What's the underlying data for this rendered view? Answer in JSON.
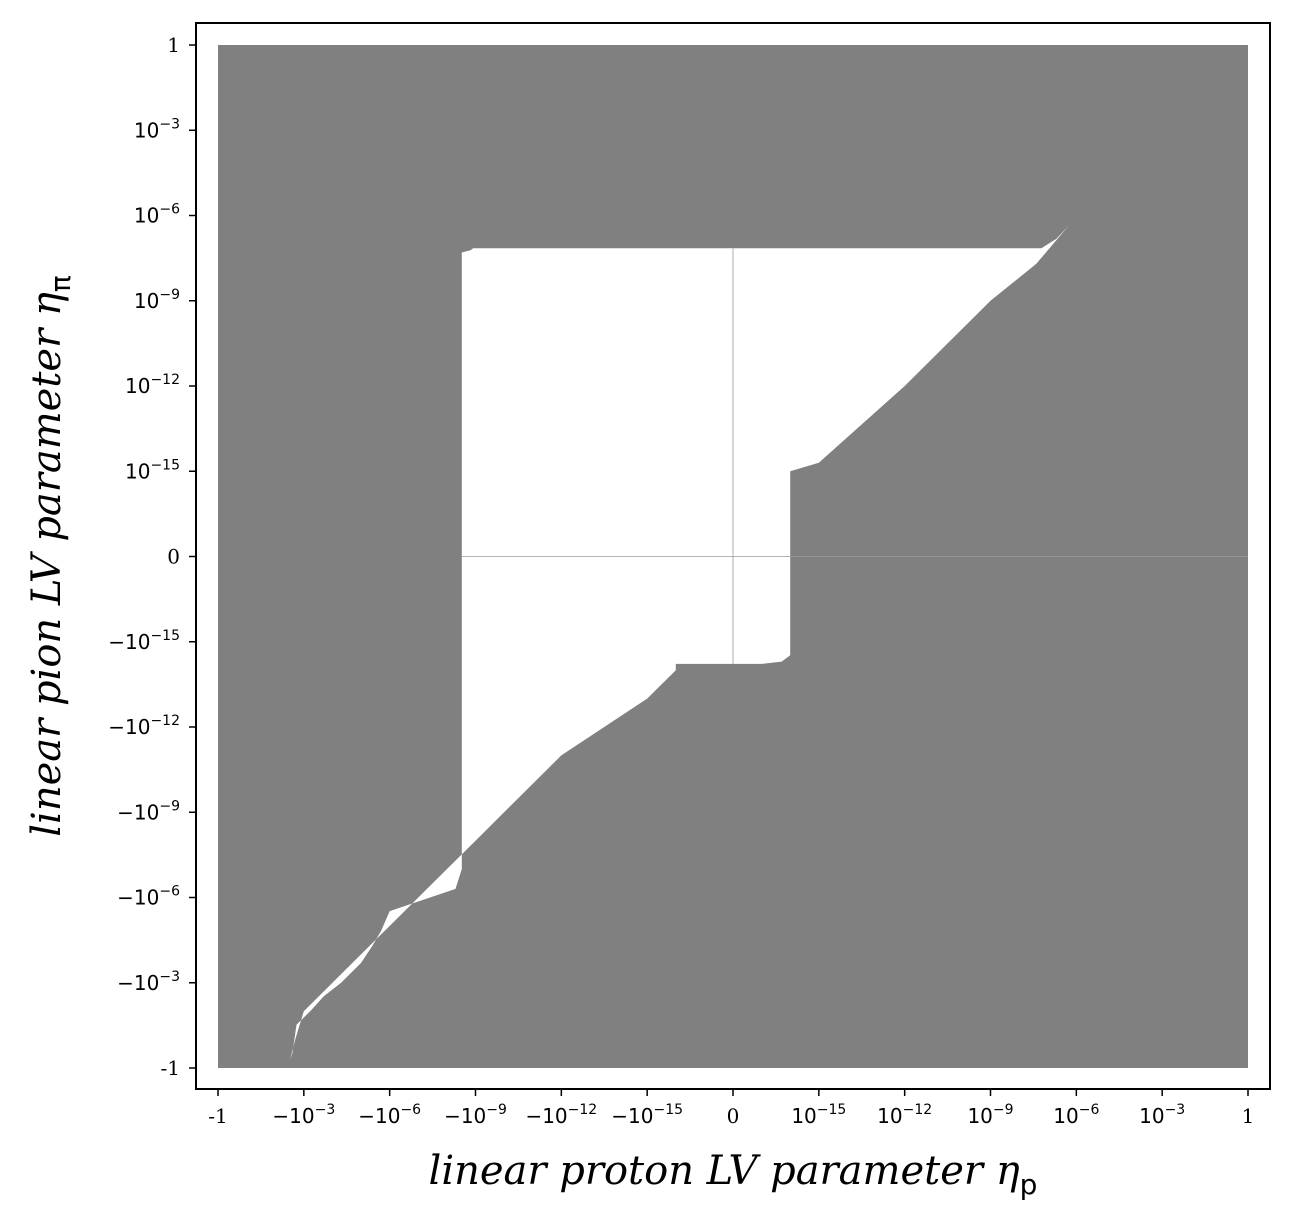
{
  "chart_data": {
    "type": "heatmap",
    "title": "",
    "xlabel": "linear proton LV parameter",
    "xlabel_symbol": "η",
    "xlabel_sub": "p",
    "ylabel": "linear pion LV parameter",
    "ylabel_symbol": "η",
    "ylabel_sub": "π",
    "x_scale": "symlog",
    "y_scale": "symlog",
    "xlim": [
      -1,
      1
    ],
    "ylim": [
      -1,
      1
    ],
    "grid": false,
    "legend": "none",
    "x_ticks": [
      {
        "value": -1,
        "label": "-1"
      },
      {
        "value": -0.001,
        "label": "−10",
        "exp": "−3"
      },
      {
        "value": -1e-06,
        "label": "−10",
        "exp": "−6"
      },
      {
        "value": -1e-09,
        "label": "−10",
        "exp": "−9"
      },
      {
        "value": -1e-12,
        "label": "−10",
        "exp": "−12"
      },
      {
        "value": -1e-15,
        "label": "−10",
        "exp": "−15"
      },
      {
        "value": 0,
        "label": "0"
      },
      {
        "value": 1e-15,
        "label": "10",
        "exp": "−15"
      },
      {
        "value": 1e-12,
        "label": "10",
        "exp": "−12"
      },
      {
        "value": 1e-09,
        "label": "10",
        "exp": "−9"
      },
      {
        "value": 1e-06,
        "label": "10",
        "exp": "−6"
      },
      {
        "value": 0.001,
        "label": "10",
        "exp": "−3"
      },
      {
        "value": 1,
        "label": "1"
      }
    ],
    "y_ticks": [
      {
        "value": 1,
        "label": "1"
      },
      {
        "value": 0.001,
        "label": "10",
        "exp": "−3"
      },
      {
        "value": 1e-06,
        "label": "10",
        "exp": "−6"
      },
      {
        "value": 1e-09,
        "label": "10",
        "exp": "−9"
      },
      {
        "value": 1e-12,
        "label": "10",
        "exp": "−12"
      },
      {
        "value": 1e-15,
        "label": "10",
        "exp": "−15"
      },
      {
        "value": 0,
        "label": "0"
      },
      {
        "value": -1e-15,
        "label": "−10",
        "exp": "−15"
      },
      {
        "value": -1e-12,
        "label": "−10",
        "exp": "−12"
      },
      {
        "value": -1e-09,
        "label": "−10",
        "exp": "−9"
      },
      {
        "value": -1e-06,
        "label": "−10",
        "exp": "−6"
      },
      {
        "value": -0.001,
        "label": "−10",
        "exp": "−3"
      },
      {
        "value": -1,
        "label": "-1"
      }
    ],
    "excluded_color": "#808080",
    "allowed_color": "#ffffff",
    "allowed_region_boundary": [
      {
        "x": -3e-09,
        "y": 5e-08
      },
      {
        "x": -1.5e-09,
        "y": 6e-08
      },
      {
        "x": -1.2e-09,
        "y": 7e-08
      },
      {
        "x": 6e-08,
        "y": 7e-08
      },
      {
        "x": 2e-07,
        "y": 1.5e-07
      },
      {
        "x": 5e-07,
        "y": 4e-07
      },
      {
        "x": 6e-07,
        "y": 5e-07
      },
      {
        "x": 4e-08,
        "y": 2e-08
      },
      {
        "x": 1e-09,
        "y": 1e-09
      },
      {
        "x": 1e-12,
        "y": 1e-12
      },
      {
        "x": 1e-15,
        "y": 2e-15
      },
      {
        "x": 1e-16,
        "y": 1e-15
      },
      {
        "x": 1e-16,
        "y": -3e-16
      },
      {
        "x": 1e-16,
        "y": -3e-15
      },
      {
        "x": 5e-17,
        "y": -5e-15
      },
      {
        "x": 1e-17,
        "y": -6e-15
      },
      {
        "x": 0,
        "y": -6e-15
      },
      {
        "x": -1e-17,
        "y": -6e-15
      },
      {
        "x": -1e-16,
        "y": -6e-15
      },
      {
        "x": -1e-16,
        "y": -1e-14
      },
      {
        "x": -1e-15,
        "y": -1e-13
      },
      {
        "x": -1e-12,
        "y": -1e-11
      },
      {
        "x": -1e-09,
        "y": -1e-08
      },
      {
        "x": -1e-06,
        "y": -1e-05
      },
      {
        "x": -0.001,
        "y": -0.01
      },
      {
        "x": -0.002,
        "y": -0.1
      },
      {
        "x": -0.003,
        "y": -0.5
      },
      {
        "x": -0.0025,
        "y": -0.3
      },
      {
        "x": -0.0018,
        "y": -0.03
      },
      {
        "x": -0.0006,
        "y": -0.01
      },
      {
        "x": -0.0002,
        "y": -0.003
      },
      {
        "x": -5e-05,
        "y": -0.001
      },
      {
        "x": -1e-05,
        "y": -0.0002
      },
      {
        "x": -4e-06,
        "y": -5e-05
      },
      {
        "x": -2e-06,
        "y": -1.5e-05
      },
      {
        "x": -1e-06,
        "y": -3e-06
      },
      {
        "x": -5e-09,
        "y": -5e-07
      },
      {
        "x": -3e-09,
        "y": -1e-07
      },
      {
        "x": -3e-09,
        "y": 0
      },
      {
        "x": -3e-09,
        "y": 5e-08
      }
    ],
    "reference_lines": [
      {
        "orientation": "vertical",
        "x": 0,
        "y_range": [
          -6e-15,
          7e-08
        ]
      },
      {
        "orientation": "horizontal",
        "y": 0,
        "x_range": [
          -3e-09,
          1
        ]
      }
    ]
  }
}
